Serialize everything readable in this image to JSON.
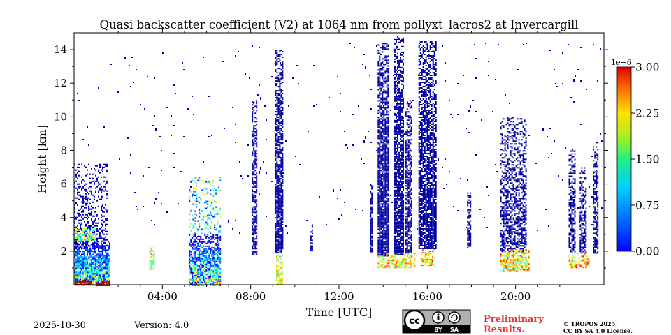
{
  "chart_data": {
    "type": "heatmap",
    "title": "Quasi backscatter coefficient (V2) at 1064 nm from pollyxt_lacros2 at Invercargill",
    "xlabel": "Time [UTC]",
    "ylabel": "Height [km]",
    "xlim_hours": [
      0,
      24
    ],
    "ylim_km": [
      0,
      15
    ],
    "x_ticks": [
      {
        "value": 4,
        "label": "04:00"
      },
      {
        "value": 8,
        "label": "08:00"
      },
      {
        "value": 12,
        "label": "12:00"
      },
      {
        "value": 16,
        "label": "16:00"
      },
      {
        "value": 20,
        "label": "20:00"
      }
    ],
    "y_ticks": [
      {
        "value": 2,
        "label": "2"
      },
      {
        "value": 4,
        "label": "4"
      },
      {
        "value": 6,
        "label": "6"
      },
      {
        "value": 8,
        "label": "8"
      },
      {
        "value": 10,
        "label": "10"
      },
      {
        "value": 12,
        "label": "12"
      },
      {
        "value": 14,
        "label": "14"
      }
    ],
    "colorbar": {
      "range": [
        0,
        3.0
      ],
      "exponent_label": "1e−6",
      "ticks": [
        {
          "value": 0,
          "label": "0.00"
        },
        {
          "value": 0.75,
          "label": "0.75"
        },
        {
          "value": 1.5,
          "label": "1.50"
        },
        {
          "value": 2.25,
          "label": "2.25"
        },
        {
          "value": 3.0,
          "label": "3.00"
        }
      ],
      "colormap": "jet"
    },
    "features": [
      {
        "kind": "layer",
        "t0": 0.0,
        "t1": 1.6,
        "h0": 0.0,
        "h1": 2.6,
        "base": 0.3,
        "spread": 2.2,
        "density": 0.95
      },
      {
        "kind": "column",
        "t0": 0.0,
        "t1": 1.5,
        "h0": 2.0,
        "h1": 7.2,
        "base": 0.12,
        "spread": 0.1,
        "density": 0.35
      },
      {
        "kind": "column",
        "t0": 0.0,
        "t1": 1.0,
        "h0": 2.6,
        "h1": 3.4,
        "base": 0.8,
        "spread": 1.2,
        "density": 0.8
      },
      {
        "kind": "column",
        "t0": 0.05,
        "t1": 0.8,
        "h0": 0.0,
        "h1": 0.3,
        "base": 2.6,
        "spread": 0.5,
        "density": 0.95
      },
      {
        "kind": "column",
        "t0": 1.0,
        "t1": 1.6,
        "h0": 0.0,
        "h1": 0.25,
        "base": 2.6,
        "spread": 0.4,
        "density": 0.9
      },
      {
        "kind": "layer",
        "t0": 5.2,
        "t1": 6.6,
        "h0": 0.0,
        "h1": 3.0,
        "base": 0.2,
        "spread": 2.3,
        "density": 0.85
      },
      {
        "kind": "column",
        "t0": 5.2,
        "t1": 6.6,
        "h0": 3.0,
        "h1": 6.5,
        "base": 0.3,
        "spread": 1.5,
        "density": 0.25
      },
      {
        "kind": "column",
        "t0": 3.4,
        "t1": 3.6,
        "h0": 0.9,
        "h1": 2.3,
        "base": 1.0,
        "spread": 1.4,
        "density": 0.6
      },
      {
        "kind": "column",
        "t0": 8.05,
        "t1": 8.3,
        "h0": 1.8,
        "h1": 11.0,
        "base": 0.05,
        "spread": 0.1,
        "density": 0.7
      },
      {
        "kind": "column",
        "t0": 9.1,
        "t1": 9.45,
        "h0": 1.9,
        "h1": 14.0,
        "base": 0.05,
        "spread": 0.1,
        "density": 0.85
      },
      {
        "kind": "column",
        "t0": 9.15,
        "t1": 9.45,
        "h0": 0.0,
        "h1": 1.8,
        "base": 1.2,
        "spread": 1.0,
        "density": 0.7
      },
      {
        "kind": "column",
        "t0": 10.7,
        "t1": 10.8,
        "h0": 2.1,
        "h1": 3.6,
        "base": 0.05,
        "spread": 0.1,
        "density": 0.8
      },
      {
        "kind": "column",
        "t0": 13.4,
        "t1": 13.5,
        "h0": 2.0,
        "h1": 6.0,
        "base": 0.05,
        "spread": 0.1,
        "density": 0.9
      },
      {
        "kind": "column",
        "t0": 13.75,
        "t1": 14.2,
        "h0": 1.7,
        "h1": 14.4,
        "base": 0.05,
        "spread": 0.1,
        "density": 0.9
      },
      {
        "kind": "column",
        "t0": 14.5,
        "t1": 14.9,
        "h0": 1.8,
        "h1": 14.8,
        "base": 0.05,
        "spread": 0.1,
        "density": 0.9
      },
      {
        "kind": "column",
        "t0": 15.0,
        "t1": 15.3,
        "h0": 1.9,
        "h1": 11.0,
        "base": 0.05,
        "spread": 0.1,
        "density": 0.75
      },
      {
        "kind": "column",
        "t0": 15.6,
        "t1": 16.4,
        "h0": 2.2,
        "h1": 14.5,
        "base": 0.05,
        "spread": 0.1,
        "density": 0.8
      },
      {
        "kind": "column",
        "t0": 13.75,
        "t1": 15.4,
        "h0": 1.0,
        "h1": 1.9,
        "base": 1.3,
        "spread": 1.2,
        "density": 0.6
      },
      {
        "kind": "column",
        "t0": 15.7,
        "t1": 16.3,
        "h0": 1.2,
        "h1": 2.2,
        "base": 1.4,
        "spread": 1.2,
        "density": 0.7
      },
      {
        "kind": "column",
        "t0": 17.8,
        "t1": 17.95,
        "h0": 2.2,
        "h1": 5.5,
        "base": 0.05,
        "spread": 0.1,
        "density": 0.8
      },
      {
        "kind": "column",
        "t0": 19.3,
        "t1": 20.5,
        "h0": 2.0,
        "h1": 10.0,
        "base": 0.05,
        "spread": 0.1,
        "density": 0.55
      },
      {
        "kind": "column",
        "t0": 19.3,
        "t1": 20.6,
        "h0": 0.8,
        "h1": 2.1,
        "base": 1.2,
        "spread": 1.4,
        "density": 0.75
      },
      {
        "kind": "column",
        "t0": 22.4,
        "t1": 22.7,
        "h0": 2.0,
        "h1": 8.0,
        "base": 0.05,
        "spread": 0.1,
        "density": 0.6
      },
      {
        "kind": "column",
        "t0": 22.9,
        "t1": 23.2,
        "h0": 1.9,
        "h1": 7.0,
        "base": 0.05,
        "spread": 0.1,
        "density": 0.65
      },
      {
        "kind": "column",
        "t0": 23.5,
        "t1": 23.7,
        "h0": 1.9,
        "h1": 8.5,
        "base": 0.05,
        "spread": 0.1,
        "density": 0.65
      },
      {
        "kind": "column",
        "t0": 22.4,
        "t1": 23.3,
        "h0": 1.0,
        "h1": 1.9,
        "base": 1.3,
        "spread": 1.3,
        "density": 0.65
      },
      {
        "kind": "noise",
        "t0": 0.0,
        "t1": 24.0,
        "h0": 3.0,
        "h1": 14.5,
        "base": 0.05,
        "spread": 0.1,
        "density": 0.006
      }
    ]
  },
  "footer": {
    "date": "2025-10-30",
    "version": "Version: 4.0",
    "preliminary_line1": "Preliminary",
    "preliminary_line2": "Results.",
    "copyright_line1": "© TROPOS 2025.",
    "copyright_line2": "CC BY SA 4.0 License.",
    "license_badge": {
      "left": "cc",
      "by": "BY",
      "sa": "SA"
    }
  },
  "colors": {
    "preliminary": "#e8323c",
    "badge_bg": "#aab2ab",
    "badge_dark": "#000000"
  }
}
